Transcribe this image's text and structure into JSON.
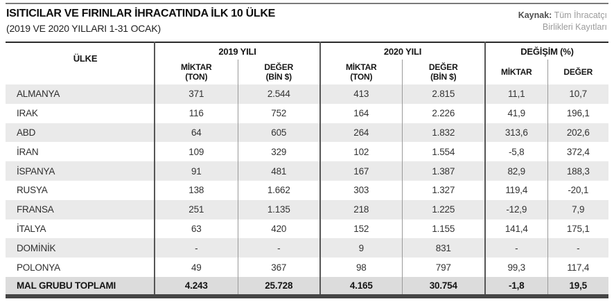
{
  "masthead": {
    "title": "ISITICILAR VE FIRINLAR İHRACATINDA İLK 10 ÜLKE",
    "subtitle": "(2019 VE 2020 YILLARI 1-31 OCAK)",
    "source_label": "Kaynak:",
    "source_line1": " Tüm İhracatçı",
    "source_line2": "Birlikleri Kayıtları"
  },
  "table_header": {
    "country": "ÜLKE",
    "group_2019": "2019 YILI",
    "group_2020": "2020 YILI",
    "group_change": "DEĞİŞİM (%)",
    "miktar": "MİKTAR",
    "miktar_unit": "(TON)",
    "deger": "DEĞER",
    "deger_unit": "(BİN $)"
  },
  "chart_data": {
    "type": "table",
    "title": "ISITICILAR VE FIRINLAR İHRACATINDA İLK 10 ÜLKE",
    "subtitle": "(2019 VE 2020 YILLARI 1-31 OCAK)",
    "source": "Kaynak: Tüm İhracatçı Birlikleri Kayıtları",
    "columns": [
      "ÜLKE",
      "2019 YILI MİKTAR (TON)",
      "2019 YILI DEĞER (BİN $)",
      "2020 YILI MİKTAR (TON)",
      "2020 YILI DEĞER (BİN $)",
      "DEĞİŞİM MİKTAR (%)",
      "DEĞİŞİM DEĞER (%)"
    ],
    "rows": [
      [
        "ALMANYA",
        "371",
        "2.544",
        "413",
        "2.815",
        "11,1",
        "10,7"
      ],
      [
        "IRAK",
        "116",
        "752",
        "164",
        "2.226",
        "41,9",
        "196,1"
      ],
      [
        "ABD",
        "64",
        "605",
        "264",
        "1.832",
        "313,6",
        "202,6"
      ],
      [
        "İRAN",
        "109",
        "329",
        "102",
        "1.554",
        "-5,8",
        "372,4"
      ],
      [
        "İSPANYA",
        "91",
        "481",
        "167",
        "1.387",
        "82,9",
        "188,3"
      ],
      [
        "RUSYA",
        "138",
        "1.662",
        "303",
        "1.327",
        "119,4",
        "-20,1"
      ],
      [
        "FRANSA",
        "251",
        "1.135",
        "218",
        "1.225",
        "-12,9",
        "7,9"
      ],
      [
        "İTALYA",
        "63",
        "420",
        "152",
        "1.155",
        "141,4",
        "175,1"
      ],
      [
        "DOMİNİK",
        "-",
        "-",
        "9",
        "831",
        "-",
        "-"
      ],
      [
        "POLONYA",
        "49",
        "367",
        "98",
        "797",
        "99,3",
        "117,4"
      ],
      [
        "MAL GRUBU TOPLAMI",
        "4.243",
        "25.728",
        "4.165",
        "30.754",
        "-1,8",
        "19,5"
      ]
    ]
  }
}
